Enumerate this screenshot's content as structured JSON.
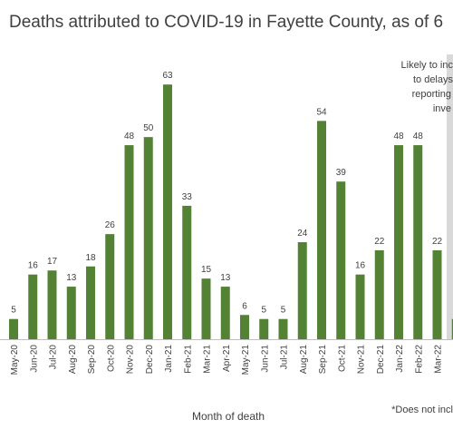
{
  "chart_data": {
    "type": "bar",
    "title": "Deaths attributed to COVID-19 in Fayette County, as of 6",
    "x_label": "Month of death",
    "annotation": [
      "Likely to inc",
      "to delays",
      "reporting",
      "inve"
    ],
    "footnote": "*Does not incl",
    "categories": [
      "May-20",
      "Jun-20",
      "Jul-20",
      "Aug-20",
      "Sep-20",
      "Oct-20",
      "Nov-20",
      "Dec-20",
      "Jan-21",
      "Feb-21",
      "Mar-21",
      "Apr-21",
      "May-21",
      "Jun-21",
      "Jul-21",
      "Aug-21",
      "Sep-21",
      "Oct-21",
      "Nov-21",
      "Dec-21",
      "Jan-22",
      "Feb-22",
      "Mar-22",
      null
    ],
    "values": [
      5,
      16,
      17,
      13,
      18,
      26,
      48,
      50,
      63,
      33,
      15,
      13,
      6,
      5,
      5,
      24,
      54,
      39,
      16,
      22,
      48,
      48,
      22,
      5
    ],
    "value_labels": [
      "5",
      "16",
      "17",
      "13",
      "18",
      "26",
      "48",
      "50",
      "63",
      "33",
      "15",
      "13",
      "6",
      "5",
      "5",
      "24",
      "54",
      "39",
      "16",
      "22",
      "48",
      "48",
      "22",
      null
    ],
    "color": "#548235",
    "ylim": [
      0,
      70
    ]
  }
}
